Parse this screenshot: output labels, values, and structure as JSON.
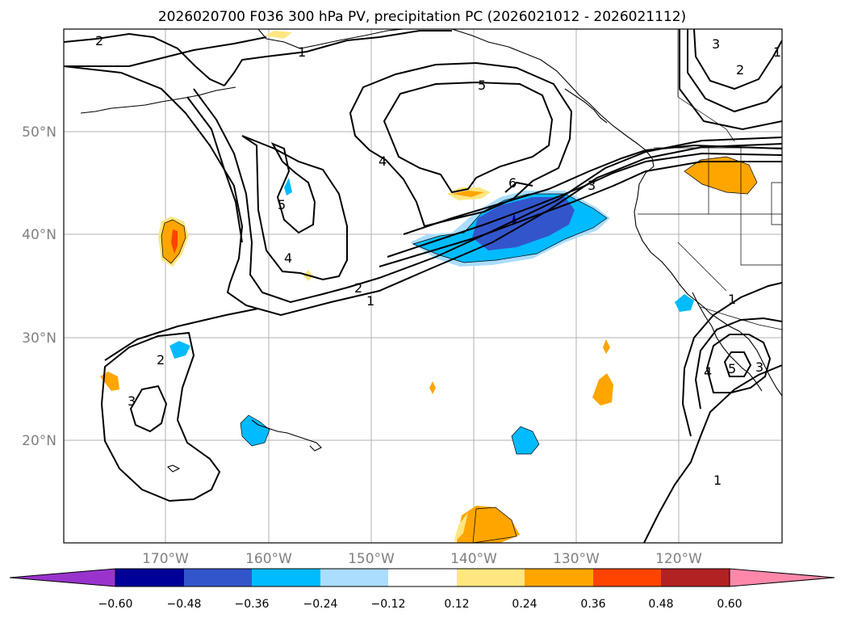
{
  "title": "2026020700 F036 300 hPa PV, precipitation PC (2026021012 - 2026021112)",
  "longitude_labels": [
    "170°W",
    "160°W",
    "150°W",
    "140°W",
    "130°W",
    "120°W"
  ],
  "latitude_labels": [
    "20°N",
    "30°N",
    "40°N",
    "50°N"
  ],
  "pv_contour_labels": [
    "1",
    "1",
    "1",
    "1",
    "2",
    "2",
    "2",
    "2",
    "3",
    "3",
    "3",
    "3",
    "4",
    "4",
    "4",
    "5",
    "5",
    "5",
    "6"
  ],
  "colorbar": {
    "tick_labels": [
      "−0.60",
      "−0.48",
      "−0.36",
      "−0.24",
      "−0.12",
      "0.12",
      "0.24",
      "0.36",
      "0.48",
      "0.60"
    ],
    "colors": {
      "under": "#9933cc",
      "neg_060": "#000099",
      "neg_048": "#3355cc",
      "neg_036": "#00bbff",
      "neg_024": "#aaddff",
      "neutral": "#ffffff",
      "pos_012": "#ffe680",
      "pos_024": "#ffa500",
      "pos_036": "#ff4400",
      "pos_048": "#b22222",
      "over": "#ff88aa"
    }
  }
}
